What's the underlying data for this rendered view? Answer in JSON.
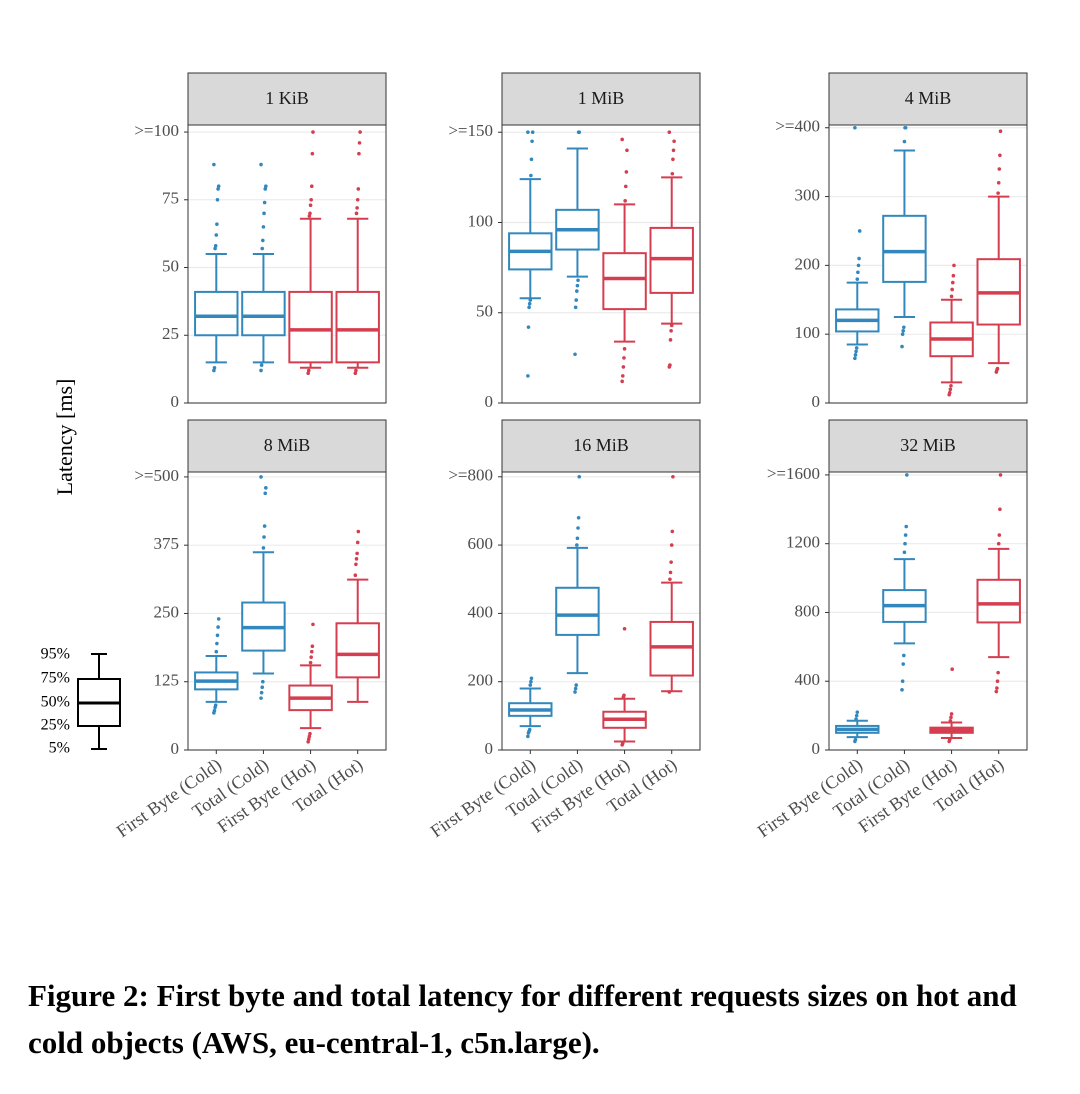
{
  "y_label": "Latency [ms]",
  "caption": "Figure 2: First byte and total latency for different requests sizes on hot and cold objects (AWS, eu-central-1, c5n.large).",
  "key": {
    "labels": [
      "95%",
      "75%",
      "50%",
      "25%",
      "5%"
    ]
  },
  "chart_data": [
    {
      "type": "box",
      "title": "1 KiB",
      "ylim": [
        0,
        102.6
      ],
      "yticks": [
        0,
        25,
        50,
        75,
        {
          "value": 100,
          "label": ">=100"
        }
      ],
      "boxes": [
        {
          "color": "#3288bd",
          "whislo": 15,
          "q1": 25,
          "med": 32,
          "q3": 41,
          "whishi": 55,
          "fliers": [
            12,
            13,
            57,
            58,
            62,
            66,
            75,
            79,
            80,
            88
          ]
        },
        {
          "color": "#3288bd",
          "whislo": 15,
          "q1": 25,
          "med": 32,
          "q3": 41,
          "whishi": 55,
          "fliers": [
            12,
            14,
            57,
            60,
            65,
            70,
            74,
            79,
            80,
            88
          ]
        },
        {
          "color": "#d53e4f",
          "whislo": 13,
          "q1": 15,
          "med": 27,
          "q3": 41,
          "whishi": 68,
          "fliers": [
            11,
            12,
            69,
            70,
            73,
            75,
            80,
            92,
            100
          ]
        },
        {
          "color": "#d53e4f",
          "whislo": 13,
          "q1": 15,
          "med": 27,
          "q3": 41,
          "whishi": 68,
          "fliers": [
            11,
            12,
            70,
            72,
            75,
            79,
            92,
            96,
            100
          ]
        }
      ]
    },
    {
      "type": "box",
      "title": "1 MiB",
      "ylim": [
        0,
        154
      ],
      "yticks": [
        0,
        50,
        100,
        {
          "value": 150,
          "label": ">=150"
        }
      ],
      "boxes": [
        {
          "color": "#3288bd",
          "whislo": 58,
          "q1": 74,
          "med": 84,
          "q3": 94,
          "whishi": 124,
          "fliers": [
            15,
            42,
            53,
            55,
            57,
            126,
            135,
            145,
            150,
            150
          ]
        },
        {
          "color": "#3288bd",
          "whislo": 70,
          "q1": 85,
          "med": 96,
          "q3": 107,
          "whishi": 141,
          "fliers": [
            27,
            53,
            57,
            62,
            65,
            68,
            150,
            150
          ]
        },
        {
          "color": "#d53e4f",
          "whislo": 34,
          "q1": 52,
          "med": 69,
          "q3": 83,
          "whishi": 110,
          "fliers": [
            12,
            15,
            20,
            25,
            30,
            112,
            120,
            128,
            140,
            146
          ]
        },
        {
          "color": "#d53e4f",
          "whislo": 44,
          "q1": 61,
          "med": 80,
          "q3": 97,
          "whishi": 125,
          "fliers": [
            20,
            21,
            35,
            40,
            43,
            127,
            135,
            140,
            145,
            150
          ]
        }
      ]
    },
    {
      "type": "box",
      "title": "4 MiB",
      "ylim": [
        0,
        404
      ],
      "yticks": [
        0,
        100,
        200,
        300,
        {
          "value": 400,
          "label": ">=400"
        }
      ],
      "boxes": [
        {
          "color": "#3288bd",
          "whislo": 85,
          "q1": 104,
          "med": 120,
          "q3": 136,
          "whishi": 175,
          "fliers": [
            65,
            70,
            75,
            80,
            180,
            190,
            200,
            210,
            250,
            400
          ]
        },
        {
          "color": "#3288bd",
          "whislo": 125,
          "q1": 176,
          "med": 220,
          "q3": 272,
          "whishi": 367,
          "fliers": [
            82,
            100,
            105,
            110,
            380,
            400,
            400
          ]
        },
        {
          "color": "#d53e4f",
          "whislo": 30,
          "q1": 68,
          "med": 93,
          "q3": 117,
          "whishi": 150,
          "fliers": [
            12,
            15,
            20,
            25,
            155,
            165,
            175,
            185,
            200
          ]
        },
        {
          "color": "#d53e4f",
          "whislo": 58,
          "q1": 114,
          "med": 160,
          "q3": 209,
          "whishi": 300,
          "fliers": [
            45,
            48,
            50,
            305,
            320,
            340,
            360,
            395
          ]
        }
      ]
    },
    {
      "type": "box",
      "title": "8 MiB",
      "ylim": [
        0,
        509
      ],
      "yticks": [
        0,
        125,
        250,
        375,
        {
          "value": 500,
          "label": ">=500"
        }
      ],
      "categories": [
        "First Byte (Cold)",
        "Total (Cold)",
        "First Byte (Hot)",
        "Total (Hot)"
      ],
      "boxes": [
        {
          "color": "#3288bd",
          "whislo": 88,
          "q1": 111,
          "med": 126,
          "q3": 142,
          "whishi": 172,
          "fliers": [
            68,
            72,
            78,
            82,
            180,
            195,
            210,
            225,
            240
          ]
        },
        {
          "color": "#3288bd",
          "whislo": 140,
          "q1": 182,
          "med": 224,
          "q3": 270,
          "whishi": 362,
          "fliers": [
            95,
            105,
            115,
            125,
            370,
            390,
            410,
            470,
            480,
            500
          ]
        },
        {
          "color": "#d53e4f",
          "whislo": 40,
          "q1": 73,
          "med": 95,
          "q3": 118,
          "whishi": 155,
          "fliers": [
            15,
            20,
            25,
            30,
            160,
            170,
            180,
            190,
            230
          ]
        },
        {
          "color": "#d53e4f",
          "whislo": 88,
          "q1": 133,
          "med": 175,
          "q3": 232,
          "whishi": 312,
          "fliers": [
            320,
            340,
            350,
            360,
            380,
            400
          ]
        }
      ]
    },
    {
      "type": "box",
      "title": "16 MiB",
      "ylim": [
        0,
        814
      ],
      "yticks": [
        0,
        200,
        400,
        600,
        {
          "value": 800,
          "label": ">=800"
        }
      ],
      "categories": [
        "First Byte (Cold)",
        "Total (Cold)",
        "First Byte (Hot)",
        "Total (Hot)"
      ],
      "boxes": [
        {
          "color": "#3288bd",
          "whislo": 70,
          "q1": 100,
          "med": 117,
          "q3": 137,
          "whishi": 180,
          "fliers": [
            40,
            50,
            55,
            60,
            190,
            200,
            210
          ]
        },
        {
          "color": "#3288bd",
          "whislo": 225,
          "q1": 337,
          "med": 395,
          "q3": 475,
          "whishi": 592,
          "fliers": [
            170,
            180,
            190,
            600,
            620,
            650,
            680,
            800
          ]
        },
        {
          "color": "#d53e4f",
          "whislo": 25,
          "q1": 65,
          "med": 90,
          "q3": 112,
          "whishi": 150,
          "fliers": [
            15,
            20,
            155,
            160,
            355
          ]
        },
        {
          "color": "#d53e4f",
          "whislo": 172,
          "q1": 218,
          "med": 302,
          "q3": 375,
          "whishi": 490,
          "fliers": [
            170,
            500,
            520,
            550,
            600,
            640,
            800
          ]
        }
      ]
    },
    {
      "type": "box",
      "title": "32 MiB",
      "ylim": [
        0,
        1617
      ],
      "yticks": [
        0,
        400,
        800,
        1200,
        {
          "value": 1600,
          "label": ">=1600"
        }
      ],
      "categories": [
        "First Byte (Cold)",
        "Total (Cold)",
        "First Byte (Hot)",
        "Total (Hot)"
      ],
      "boxes": [
        {
          "color": "#3288bd",
          "whislo": 75,
          "q1": 100,
          "med": 120,
          "q3": 140,
          "whishi": 170,
          "fliers": [
            50,
            60,
            180,
            200,
            220
          ]
        },
        {
          "color": "#3288bd",
          "whislo": 620,
          "q1": 745,
          "med": 840,
          "q3": 930,
          "whishi": 1110,
          "fliers": [
            350,
            400,
            500,
            550,
            1150,
            1200,
            1250,
            1300,
            1600
          ]
        },
        {
          "color": "#d53e4f",
          "whislo": 70,
          "q1": 100,
          "med": 115,
          "q3": 130,
          "whishi": 160,
          "fliers": [
            50,
            60,
            170,
            190,
            210,
            470
          ]
        },
        {
          "color": "#d53e4f",
          "whislo": 540,
          "q1": 742,
          "med": 850,
          "q3": 990,
          "whishi": 1170,
          "fliers": [
            340,
            360,
            400,
            450,
            1200,
            1250,
            1400,
            1600
          ]
        }
      ]
    }
  ]
}
